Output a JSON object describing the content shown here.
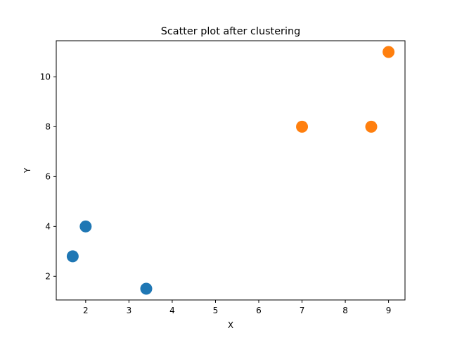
{
  "chart_data": {
    "type": "scatter",
    "title": "Scatter plot after clustering",
    "xlabel": "X",
    "ylabel": "Y",
    "xlim": [
      1.32,
      9.38
    ],
    "ylim": [
      1.05,
      11.45
    ],
    "xticks": [
      2,
      3,
      4,
      5,
      6,
      7,
      8,
      9
    ],
    "yticks": [
      2,
      4,
      6,
      8,
      10
    ],
    "grid": false,
    "legend": "none",
    "series": [
      {
        "color": "#1f77b4",
        "points": [
          {
            "x": 1.7,
            "y": 2.8
          },
          {
            "x": 2.0,
            "y": 4.0
          },
          {
            "x": 3.4,
            "y": 1.5
          }
        ]
      },
      {
        "color": "#ff7f0e",
        "points": [
          {
            "x": 7.0,
            "y": 8.0
          },
          {
            "x": 8.6,
            "y": 8.0
          },
          {
            "x": 9.0,
            "y": 11.0
          }
        ]
      }
    ]
  }
}
